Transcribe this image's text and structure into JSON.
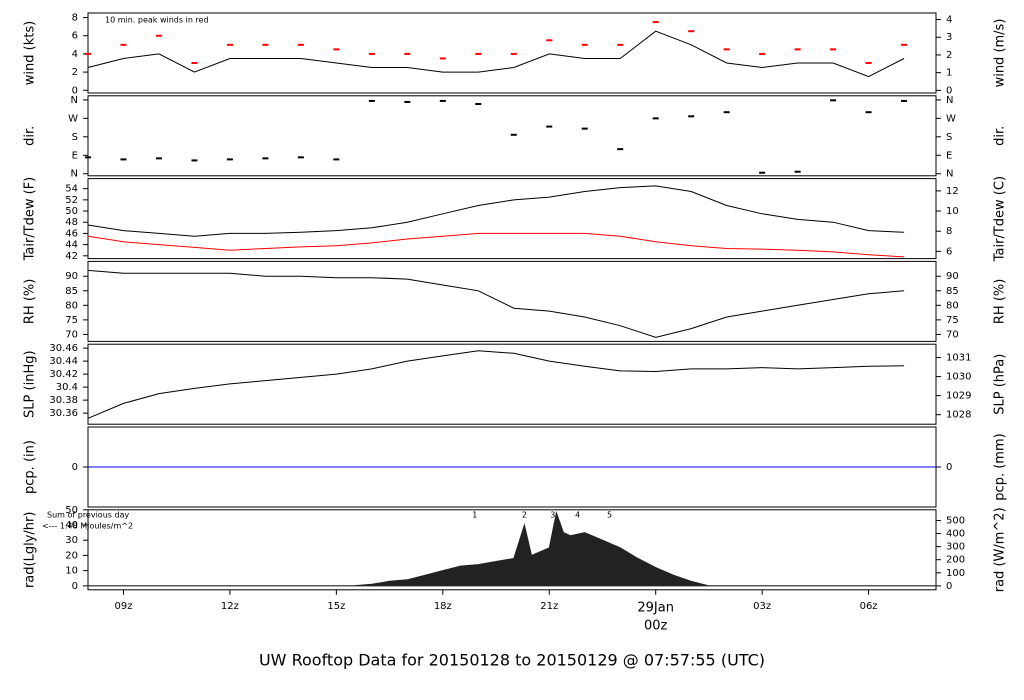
{
  "title": "UW Rooftop Data for 20150128  to  20150129 @ 07:57:55  (UTC)",
  "title_color": "#0000cc",
  "chart_data": [
    {
      "type": "line",
      "ylabel": "wind (kts)",
      "y2label": "wind (m/s)",
      "annotation": "10 min. peak winds in red",
      "annotation_color": "#ff0000",
      "xlim": [
        8,
        31.9
      ],
      "ylim": [
        -0.3,
        8.5
      ],
      "yticks": [
        0,
        2,
        4,
        6,
        8
      ],
      "y2lim": [
        -0.15,
        4.37
      ],
      "y2ticks": [
        0,
        1,
        2,
        3,
        4
      ],
      "x": [
        8,
        9,
        10,
        11,
        12,
        13,
        14,
        15,
        16,
        17,
        18,
        19,
        20,
        21,
        22,
        23,
        24,
        25,
        26,
        27,
        28,
        29,
        30,
        31
      ],
      "series": [
        {
          "color": "#000000",
          "values": [
            2.5,
            3.5,
            4,
            2,
            3.5,
            3.5,
            3.5,
            3,
            2.5,
            2.5,
            2,
            2,
            2.5,
            4,
            3.5,
            3.5,
            6.5,
            5,
            3,
            2.5,
            3,
            3,
            1.5,
            3.5
          ]
        },
        {
          "type": "scatter",
          "color": "#ff0000",
          "values": [
            4,
            5,
            6,
            3,
            5,
            5,
            5,
            4.5,
            4,
            4,
            3.5,
            4,
            4,
            5.5,
            5,
            5,
            7.5,
            6.5,
            4.5,
            4,
            4.5,
            4.5,
            3,
            5
          ]
        }
      ]
    },
    {
      "type": "scatter",
      "ylabel": "dir.",
      "y2label": "dir.",
      "xlim": [
        8,
        31.9
      ],
      "ylim": [
        -10,
        380
      ],
      "yticks": [
        {
          "value": 0,
          "label": "N"
        },
        {
          "value": 90,
          "label": "E"
        },
        {
          "value": 180,
          "label": "S"
        },
        {
          "value": 270,
          "label": "W"
        },
        {
          "value": 360,
          "label": "N"
        }
      ],
      "y2lim": [
        -10,
        380
      ],
      "y2ticks": [
        {
          "value": 0,
          "label": "N"
        },
        {
          "value": 90,
          "label": "E"
        },
        {
          "value": 180,
          "label": "S"
        },
        {
          "value": 270,
          "label": "W"
        },
        {
          "value": 360,
          "label": "N"
        }
      ],
      "x": [
        8,
        9,
        10,
        11,
        12,
        13,
        14,
        15,
        16,
        17,
        18,
        19,
        20,
        21,
        22,
        23,
        24,
        25,
        26,
        27,
        28,
        29,
        30,
        31
      ],
      "series": [
        {
          "color": "#000000",
          "values": [
            80,
            70,
            75,
            65,
            70,
            75,
            80,
            70,
            355,
            350,
            355,
            340,
            190,
            230,
            220,
            120,
            270,
            280,
            300,
            5,
            10,
            358,
            300,
            355
          ]
        }
      ]
    },
    {
      "type": "line",
      "ylabel": "Tair/Tdew (F)",
      "y2label": "Tair/Tdew (C)",
      "xlim": [
        8,
        31.9
      ],
      "ylim": [
        41.5,
        55.8
      ],
      "yticks": [
        42,
        44,
        46,
        48,
        50,
        52,
        54
      ],
      "y2lim": [
        5.28,
        13.22
      ],
      "y2ticks": [
        6,
        8,
        10,
        12
      ],
      "x": [
        8,
        9,
        10,
        11,
        12,
        13,
        14,
        15,
        16,
        17,
        18,
        19,
        20,
        21,
        22,
        23,
        24,
        25,
        26,
        27,
        28,
        29,
        30,
        31
      ],
      "series": [
        {
          "color": "#000000",
          "values": [
            47.5,
            46.5,
            46,
            45.5,
            46,
            46,
            46.2,
            46.5,
            47,
            48,
            49.5,
            51,
            52,
            52.5,
            53.5,
            54.2,
            54.5,
            53.5,
            51,
            49.5,
            48.5,
            48,
            46.5,
            46.2
          ]
        },
        {
          "color": "#ff0000",
          "values": [
            45.5,
            44.5,
            44,
            43.5,
            43,
            43.3,
            43.6,
            43.8,
            44.3,
            45,
            45.5,
            46,
            46,
            46,
            46,
            45.5,
            44.5,
            43.8,
            43.3,
            43.2,
            43,
            42.7,
            42.2,
            41.8
          ]
        }
      ]
    },
    {
      "type": "line",
      "ylabel": "RH (%)",
      "y2label": "RH (%)",
      "xlim": [
        8,
        31.9
      ],
      "ylim": [
        67.6,
        95.1
      ],
      "yticks": [
        70,
        75,
        80,
        85,
        90
      ],
      "y2lim": [
        67.6,
        95.1
      ],
      "y2ticks": [
        70,
        75,
        80,
        85,
        90
      ],
      "x": [
        8,
        9,
        10,
        11,
        12,
        13,
        14,
        15,
        16,
        17,
        18,
        19,
        20,
        21,
        22,
        23,
        24,
        25,
        26,
        27,
        28,
        29,
        30,
        31
      ],
      "series": [
        {
          "color": "#000000",
          "values": [
            92,
            91,
            91,
            91,
            91,
            90,
            90,
            89.5,
            89.5,
            89,
            87,
            85,
            79,
            78,
            76,
            73,
            69,
            72,
            76,
            78,
            80,
            82,
            84,
            85
          ]
        }
      ]
    },
    {
      "type": "line",
      "ylabel": "SLP (inHg)",
      "y2label": "SLP (hPa)",
      "xlim": [
        8,
        31.9
      ],
      "ylim": [
        30.343,
        30.466
      ],
      "yticks": [
        30.36,
        30.38,
        30.4,
        30.42,
        30.44,
        30.46
      ],
      "y2lim": [
        1027.5,
        1031.7
      ],
      "y2ticks": [
        1028,
        1029,
        1030,
        1031
      ],
      "x": [
        8,
        9,
        10,
        11,
        12,
        13,
        14,
        15,
        16,
        17,
        18,
        19,
        20,
        21,
        22,
        23,
        24,
        25,
        26,
        27,
        28,
        29,
        30,
        31
      ],
      "series": [
        {
          "color": "#000000",
          "values": [
            30.352,
            30.375,
            30.39,
            30.398,
            30.405,
            30.41,
            30.415,
            30.42,
            30.428,
            30.44,
            30.448,
            30.456,
            30.452,
            30.44,
            30.432,
            30.425,
            30.424,
            30.428,
            30.428,
            30.43,
            30.428,
            30.43,
            30.432,
            30.433
          ]
        }
      ]
    },
    {
      "type": "line",
      "ylabel": "pcp. (in)",
      "y2label": "pcp. (mm)",
      "xlim": [
        8,
        31.9
      ],
      "ylim": [
        -1,
        1
      ],
      "yticks": [
        0
      ],
      "y2lim": [
        -1,
        1
      ],
      "y2ticks": [
        0
      ],
      "x": [
        8,
        31.9
      ],
      "series": [
        {
          "color": "#0000ff",
          "values": [
            0,
            0
          ]
        }
      ]
    },
    {
      "type": "area",
      "ylabel": "rad(Lgly/hr)",
      "y2label": "rad (W/m^2)",
      "notes": [
        "Sum of previous day",
        "<--- 1.48 MJoules/m^2"
      ],
      "notes_color": "#9900cc",
      "markers": [
        {
          "label": "1",
          "x": 18.9
        },
        {
          "label": "2",
          "x": 20.3
        },
        {
          "label": "3",
          "x": 21.1
        },
        {
          "label": "4",
          "x": 21.8
        },
        {
          "label": "5",
          "x": 22.7
        }
      ],
      "xlim": [
        8,
        31.9
      ],
      "ylim": [
        -2.6,
        50
      ],
      "yticks": [
        0,
        10,
        20,
        30,
        40,
        50
      ],
      "y2lim": [
        -30,
        581.5
      ],
      "y2ticks": [
        0,
        100,
        200,
        300,
        400,
        500
      ],
      "xticks": [
        {
          "value": 9,
          "label": "09z"
        },
        {
          "value": 12,
          "label": "12z"
        },
        {
          "value": 15,
          "label": "15z"
        },
        {
          "value": 18,
          "label": "18z"
        },
        {
          "value": 21,
          "label": "21z"
        },
        {
          "value": 24,
          "label": "00z"
        },
        {
          "value": 27,
          "label": "03z"
        },
        {
          "value": 30,
          "label": "06z"
        }
      ],
      "date_label": {
        "text": "29Jan",
        "value": 24,
        "color": "#ff0000"
      },
      "x": [
        8,
        15.5,
        16,
        16.5,
        17,
        17.5,
        18,
        18.5,
        19,
        19.5,
        20,
        20.3,
        20.5,
        20.7,
        21,
        21.2,
        21.4,
        21.6,
        22,
        22.5,
        23,
        23.5,
        24,
        24.5,
        25,
        25.5,
        31.9
      ],
      "series": [
        {
          "color": "#222222",
          "values": [
            0,
            0,
            1,
            3,
            4,
            7,
            10,
            13,
            14,
            16,
            18,
            40,
            20,
            22,
            25,
            48,
            35,
            33,
            35,
            30,
            25,
            18,
            12,
            7,
            3,
            0,
            0
          ]
        }
      ]
    }
  ]
}
